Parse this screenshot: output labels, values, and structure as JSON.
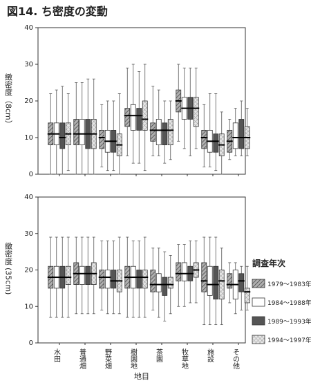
{
  "title": "図14. ち密度の変動",
  "chart_data": [
    {
      "type": "box",
      "y_label": "緻密度（8cm）",
      "ylim": [
        0,
        40
      ],
      "yticks": [
        0,
        10,
        20,
        30,
        40
      ],
      "categories": [
        null,
        null,
        null,
        null,
        null,
        null,
        null,
        null
      ],
      "series": [
        {
          "color": "#9a9a9a",
          "hatch": "diagonal",
          "values": [
            [
              0,
              8,
              11,
              14,
              22
            ],
            [
              0,
              8,
              11,
              15,
              25
            ],
            [
              2,
              7,
              10,
              12,
              19
            ],
            [
              5,
              13,
              16,
              18,
              29
            ],
            [
              5,
              9,
              12,
              14,
              24
            ],
            [
              9,
              17,
              20,
              23,
              30
            ],
            [
              2,
              7,
              10,
              12,
              19
            ],
            [
              4,
              6,
              9,
              12,
              15
            ]
          ]
        },
        {
          "color": "#ffffff",
          "values": [
            [
              0,
              8,
              11,
              14,
              23
            ],
            [
              0,
              8,
              11,
              15,
              25
            ],
            [
              1,
              6,
              9,
              12,
              20
            ],
            [
              3,
              12,
              16,
              19,
              30
            ],
            [
              5,
              8,
              12,
              15,
              23
            ],
            [
              7,
              15,
              18,
              21,
              29
            ],
            [
              2,
              6,
              9,
              12,
              22
            ],
            [
              5,
              7,
              10,
              14,
              18
            ]
          ]
        },
        {
          "color": "#555555",
          "values": [
            [
              0,
              7,
              10,
              14,
              24
            ],
            [
              0,
              7,
              11,
              15,
              26
            ],
            [
              1,
              6,
              9,
              12,
              20
            ],
            [
              3,
              12,
              16,
              18,
              28
            ],
            [
              3,
              8,
              12,
              14,
              20
            ],
            [
              5,
              15,
              18,
              21,
              29
            ],
            [
              1,
              6,
              9,
              11,
              22
            ],
            [
              5,
              7,
              10,
              15,
              20
            ]
          ]
        },
        {
          "color": "#d8d8d8",
          "hatch": "cross",
          "values": [
            [
              1,
              8,
              11,
              14,
              22
            ],
            [
              0,
              7,
              11,
              15,
              26
            ],
            [
              0,
              5,
              8,
              11,
              22
            ],
            [
              1,
              12,
              15,
              20,
              30
            ],
            [
              4,
              8,
              12,
              15,
              20
            ],
            [
              7,
              13,
              18,
              21,
              29
            ],
            [
              0,
              5,
              8,
              11,
              17
            ],
            [
              5,
              7,
              10,
              13,
              18
            ]
          ]
        }
      ]
    },
    {
      "type": "box",
      "y_label": "緻密度 (35cm)",
      "x_label": "地目",
      "legend_title": "調査年次",
      "ylim": [
        0,
        40
      ],
      "yticks": [
        0,
        10,
        20,
        30,
        40
      ],
      "categories": [
        "水田",
        "普通畑",
        "野菜畑",
        "樹園地",
        "茶園",
        "牧草地",
        "施設",
        "その他"
      ],
      "series": [
        {
          "name": "1979～1983年",
          "color": "#9a9a9a",
          "hatch": "diagonal",
          "values": [
            [
              7,
              15,
              18,
              21,
              29
            ],
            [
              8,
              16,
              19,
              22,
              29
            ],
            [
              9,
              15,
              18,
              20,
              28
            ],
            [
              7,
              15,
              18,
              21,
              29
            ],
            [
              9,
              14,
              16,
              20,
              26
            ],
            [
              10,
              17,
              19,
              22,
              27
            ],
            [
              5,
              14,
              17,
              22,
              29
            ],
            [
              11,
              15,
              16,
              19,
              22
            ]
          ]
        },
        {
          "name": "1984～1988年",
          "color": "#ffffff",
          "values": [
            [
              7,
              15,
              18,
              21,
              29
            ],
            [
              8,
              16,
              19,
              21,
              29
            ],
            [
              8,
              15,
              18,
              20,
              28
            ],
            [
              7,
              15,
              18,
              21,
              28
            ],
            [
              7,
              14,
              16,
              19,
              26
            ],
            [
              10,
              17,
              19,
              22,
              27
            ],
            [
              5,
              13,
              16,
              21,
              29
            ],
            [
              8,
              12,
              16,
              20,
              22
            ]
          ]
        },
        {
          "name": "1989～1993年",
          "color": "#555555",
          "values": [
            [
              7,
              15,
              18,
              21,
              29
            ],
            [
              8,
              16,
              19,
              21,
              29
            ],
            [
              8,
              15,
              17,
              20,
              28
            ],
            [
              7,
              15,
              18,
              20,
              28
            ],
            [
              6,
              13,
              16,
              18,
              25
            ],
            [
              11,
              17,
              19,
              21,
              28
            ],
            [
              5,
              12,
              16,
              21,
              29
            ],
            [
              9,
              14,
              17,
              19,
              21
            ]
          ]
        },
        {
          "name": "1994～1997年",
          "color": "#d8d8d8",
          "hatch": "cross",
          "values": [
            [
              7,
              16,
              18,
              21,
              29
            ],
            [
              8,
              16,
              19,
              22,
              29
            ],
            [
              8,
              14,
              17,
              20,
              29
            ],
            [
              7,
              15,
              18,
              20,
              29
            ],
            [
              8,
              15,
              16,
              18,
              24
            ],
            [
              11,
              18,
              20,
              22,
              28
            ],
            [
              5,
              12,
              17,
              20,
              26
            ],
            [
              9,
              11,
              14,
              15,
              21
            ]
          ]
        }
      ]
    }
  ]
}
